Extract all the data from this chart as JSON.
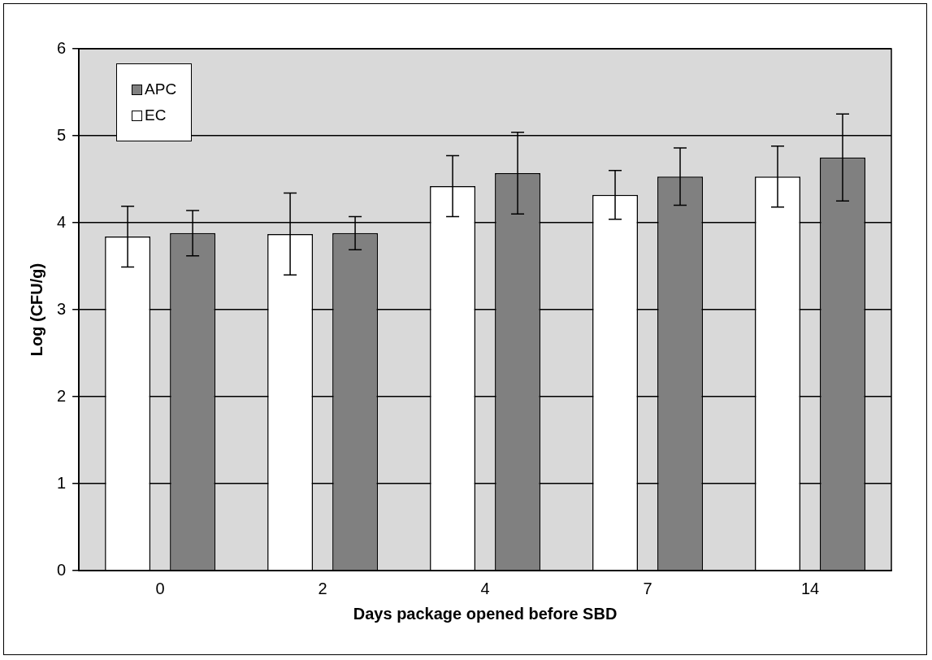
{
  "chart_data": {
    "type": "bar",
    "xlabel": "Days package opened before SBD",
    "ylabel": "Log (CFU/g)",
    "categories": [
      "0",
      "2",
      "4",
      "7",
      "14"
    ],
    "series": [
      {
        "name": "EC",
        "color": "#ffffff",
        "values": [
          3.84,
          3.87,
          4.42,
          4.32,
          4.53
        ],
        "errors": [
          0.35,
          0.47,
          0.35,
          0.28,
          0.35
        ]
      },
      {
        "name": "APC",
        "color": "#808080",
        "values": [
          3.88,
          3.88,
          4.57,
          4.53,
          4.75
        ],
        "errors": [
          0.26,
          0.19,
          0.47,
          0.33,
          0.5
        ]
      }
    ],
    "ylim": [
      0,
      6
    ],
    "yticks": [
      0,
      1,
      2,
      3,
      4,
      5,
      6
    ],
    "grid": "y",
    "legend": "top left"
  }
}
